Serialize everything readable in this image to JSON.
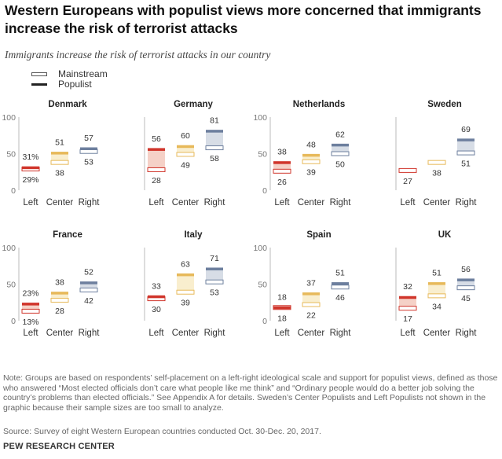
{
  "title": "Western Europeans with populist views more concerned that immigrants increase the risk of terrorist attacks",
  "subtitle": "Immigrants increase the risk of terrorist attacks in our country",
  "legend": {
    "mainstream": "Mainstream",
    "populist": "Populist"
  },
  "note": "Note: Groups are based on respondents’ self-placement on a left-right ideological scale and support for populist views, defined as those who answered “Most elected officials don’t care what people like me think” and “Ordinary people would do a better job solving the country’s problems than elected officials.” See Appendix A for details. Sweden’s Center Populists and Left Populists not shown in the graphic because their sample sizes are too small to analyze.",
  "source": "Source: Survey of eight Western European countries conducted Oct. 30-Dec. 20, 2017.",
  "brand": "PEW RESEARCH CENTER",
  "colors": {
    "left": {
      "stroke": "#d0352b",
      "fill": "#f3c9bd"
    },
    "center": {
      "stroke": "#e7b95a",
      "fill": "#f8ebc5"
    },
    "right": {
      "stroke": "#6d7f9e",
      "fill": "#d0d7e2"
    },
    "axis": "#bbbbbb",
    "text": "#333333"
  },
  "chart_data": [
    {
      "type": "range",
      "title": "Denmark",
      "categories": [
        "Left",
        "Center",
        "Right"
      ],
      "yticks": [
        "0",
        "50",
        "100"
      ],
      "ylim": [
        0,
        100
      ],
      "series": [
        {
          "name": "Mainstream",
          "values": [
            29,
            38,
            53
          ],
          "labels": [
            "29%",
            "38",
            "53"
          ]
        },
        {
          "name": "Populist",
          "values": [
            31,
            51,
            57
          ],
          "labels": [
            "31%",
            "51",
            "57"
          ]
        }
      ]
    },
    {
      "type": "range",
      "title": "Germany",
      "categories": [
        "Left",
        "Center",
        "Right"
      ],
      "yticks": [],
      "ylim": [
        0,
        100
      ],
      "series": [
        {
          "name": "Mainstream",
          "values": [
            28,
            49,
            58
          ],
          "labels": [
            "28",
            "49",
            "58"
          ]
        },
        {
          "name": "Populist",
          "values": [
            56,
            60,
            81
          ],
          "labels": [
            "56",
            "60",
            "81"
          ]
        }
      ]
    },
    {
      "type": "range",
      "title": "Netherlands",
      "categories": [
        "Left",
        "Center",
        "Right"
      ],
      "yticks": [
        "0",
        "50",
        "100"
      ],
      "ylim": [
        0,
        100
      ],
      "series": [
        {
          "name": "Mainstream",
          "values": [
            26,
            39,
            50
          ],
          "labels": [
            "26",
            "39",
            "50"
          ]
        },
        {
          "name": "Populist",
          "values": [
            38,
            48,
            62
          ],
          "labels": [
            "38",
            "48",
            "62"
          ]
        }
      ]
    },
    {
      "type": "range",
      "title": "Sweden",
      "categories": [
        "Left",
        "Center",
        "Right"
      ],
      "yticks": [],
      "ylim": [
        0,
        100
      ],
      "series": [
        {
          "name": "Mainstream",
          "values": [
            27,
            38,
            51
          ],
          "labels": [
            "27",
            "38",
            "51"
          ]
        },
        {
          "name": "Populist",
          "values": [
            null,
            null,
            69
          ],
          "labels": [
            null,
            null,
            "69"
          ]
        }
      ]
    },
    {
      "type": "range",
      "title": "France",
      "categories": [
        "Left",
        "Center",
        "Right"
      ],
      "yticks": [
        "0",
        "50",
        "100"
      ],
      "ylim": [
        0,
        100
      ],
      "series": [
        {
          "name": "Mainstream",
          "values": [
            13,
            28,
            42
          ],
          "labels": [
            "13%",
            "28",
            "42"
          ]
        },
        {
          "name": "Populist",
          "values": [
            23,
            38,
            52
          ],
          "labels": [
            "23%",
            "38",
            "52"
          ]
        }
      ]
    },
    {
      "type": "range",
      "title": "Italy",
      "categories": [
        "Left",
        "Center",
        "Right"
      ],
      "yticks": [],
      "ylim": [
        0,
        100
      ],
      "series": [
        {
          "name": "Mainstream",
          "values": [
            30,
            39,
            53
          ],
          "labels": [
            "30",
            "39",
            "53"
          ]
        },
        {
          "name": "Populist",
          "values": [
            33,
            63,
            71
          ],
          "labels": [
            "33",
            "63",
            "71"
          ]
        }
      ]
    },
    {
      "type": "range",
      "title": "Spain",
      "categories": [
        "Left",
        "Center",
        "Right"
      ],
      "yticks": [
        "0",
        "50",
        "100"
      ],
      "ylim": [
        0,
        100
      ],
      "series": [
        {
          "name": "Mainstream",
          "values": [
            18,
            22,
            46
          ],
          "labels": [
            "18",
            "22",
            "46"
          ]
        },
        {
          "name": "Populist",
          "values": [
            18,
            37,
            51
          ],
          "labels": [
            "18",
            "37",
            "51"
          ]
        }
      ]
    },
    {
      "type": "range",
      "title": "UK",
      "categories": [
        "Left",
        "Center",
        "Right"
      ],
      "yticks": [],
      "ylim": [
        0,
        100
      ],
      "series": [
        {
          "name": "Mainstream",
          "values": [
            17,
            34,
            45
          ],
          "labels": [
            "17",
            "34",
            "45"
          ]
        },
        {
          "name": "Populist",
          "values": [
            32,
            51,
            56
          ],
          "labels": [
            "32",
            "51",
            "56"
          ]
        }
      ]
    }
  ]
}
